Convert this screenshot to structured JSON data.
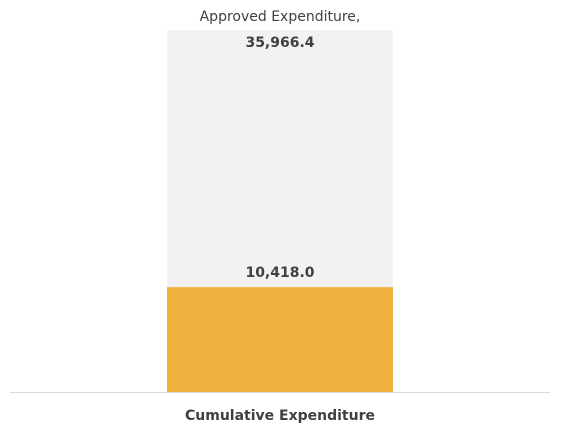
{
  "chart_data": {
    "type": "bar",
    "overlap": true,
    "categories": [
      "Cumulative Expenditure"
    ],
    "series": [
      {
        "name": "Approved Expenditure,",
        "color": "#f2f2f2",
        "values": [
          35966.4
        ],
        "value_labels": [
          "35,966.4"
        ]
      },
      {
        "color": "#f0b13f",
        "values": [
          10418.0
        ],
        "value_labels": [
          "10,418.0"
        ]
      }
    ]
  }
}
